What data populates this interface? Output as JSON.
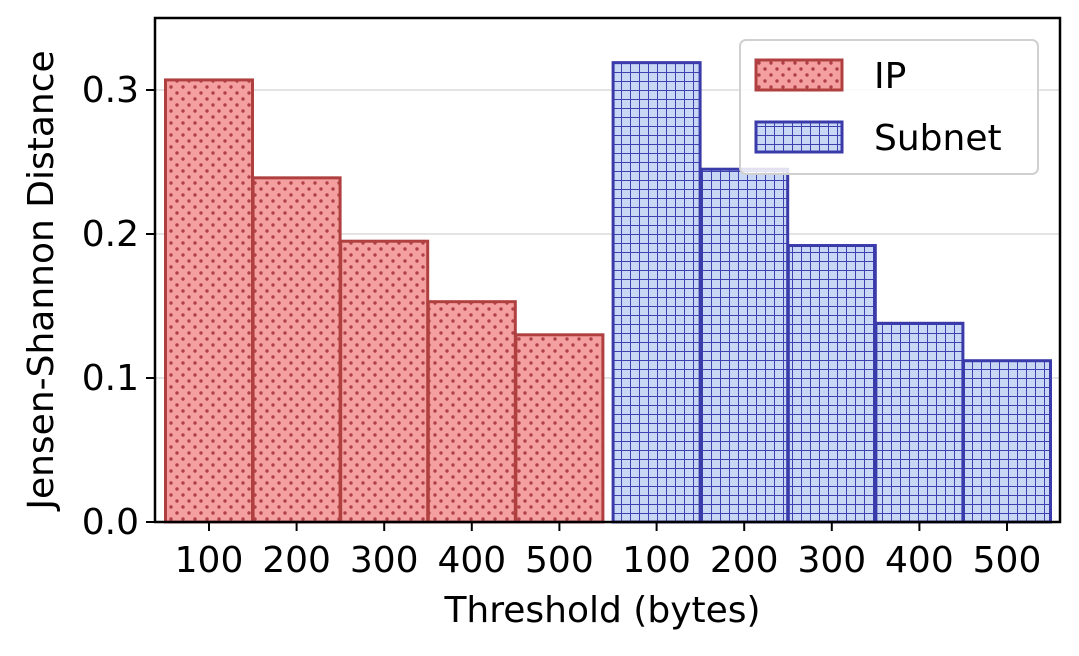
{
  "chart_data": {
    "type": "bar",
    "xlabel": "Threshold (bytes)",
    "ylabel": "Jensen-Shannon Distance",
    "ylim": [
      0,
      0.35
    ],
    "yticks": [
      0.0,
      0.1,
      0.2,
      0.3
    ],
    "ytick_labels": [
      "0.0",
      "0.1",
      "0.2",
      "0.3"
    ],
    "grid": "horizontal",
    "legend_position": "top-right",
    "series": [
      {
        "name": "IP",
        "categories": [
          "100",
          "200",
          "300",
          "400",
          "500"
        ],
        "values": [
          0.307,
          0.239,
          0.195,
          0.153,
          0.13
        ],
        "fill": "#f4a0a0",
        "edge": "#b04040",
        "hatch": "dots"
      },
      {
        "name": "Subnet",
        "categories": [
          "100",
          "200",
          "300",
          "400",
          "500"
        ],
        "values": [
          0.319,
          0.245,
          0.192,
          0.138,
          0.112
        ],
        "fill": "#c8d8f4",
        "edge": "#3a3aaa",
        "hatch": "grid"
      }
    ]
  }
}
